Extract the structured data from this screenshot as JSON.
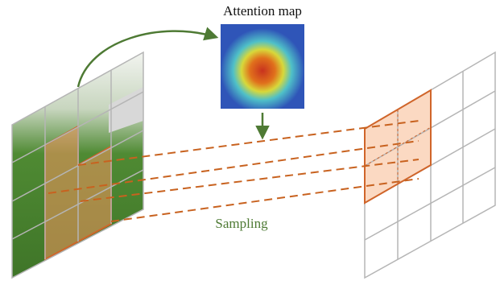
{
  "attention_map": {
    "title": "Attention map"
  },
  "sampling": {
    "label": "Sampling"
  }
}
